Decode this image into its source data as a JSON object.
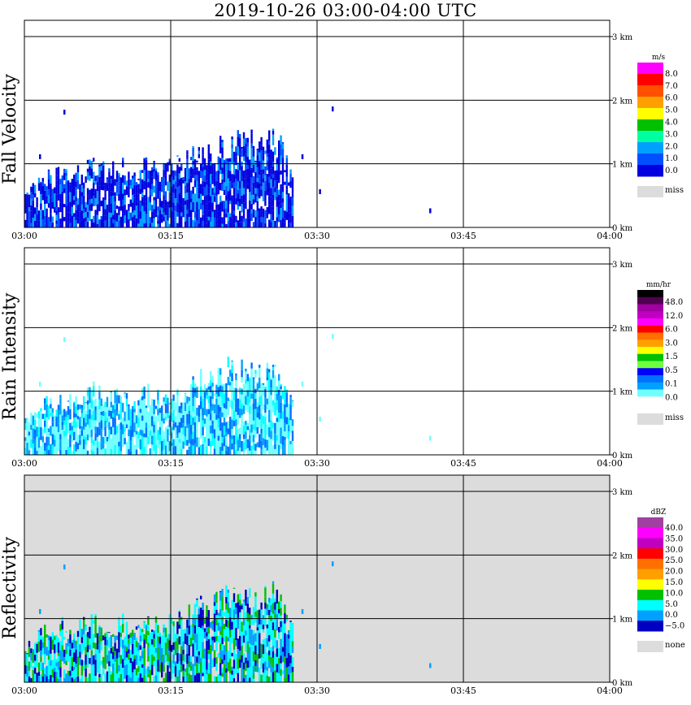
{
  "title": "2019-10-26   03:00-04:00 UTC",
  "chart_data": [
    {
      "type": "heatmap",
      "ylabel": "Fall Velocity",
      "xlim": [
        "03:00",
        "04:00"
      ],
      "ylim_km": [
        0,
        3.2
      ],
      "xticks": [
        "03:00",
        "03:15",
        "03:30",
        "03:45",
        "04:00"
      ],
      "yticks": [
        "0 km",
        "1 km",
        "2 km",
        "3 km"
      ],
      "background": "#ffffff",
      "colorbar": {
        "unit": "m/s",
        "colors": [
          "#ff00ff",
          "#ff0000",
          "#ff5000",
          "#ffa000",
          "#ffff00",
          "#00c000",
          "#00ffa0",
          "#00a0ff",
          "#0050ff",
          "#0000e0"
        ],
        "labels": [
          "8.0",
          "7.0",
          "6.0",
          "5.0",
          "4.0",
          "3.0",
          "2.0",
          "1.0",
          "0.0"
        ],
        "miss_label": "miss"
      },
      "echo_profile": {
        "minutes": [
          0,
          1,
          2,
          3,
          4,
          5,
          6,
          7,
          8,
          9,
          10,
          11,
          12,
          13,
          14,
          15,
          16,
          17,
          18,
          19,
          20,
          21,
          22,
          23,
          24,
          25,
          26,
          27,
          28,
          29,
          30,
          31,
          35,
          40,
          45,
          50,
          55,
          60
        ],
        "top_km": [
          0.6,
          0.75,
          0.9,
          0.9,
          1.0,
          0.9,
          1.0,
          1.1,
          1.0,
          1.0,
          1.05,
          0.9,
          1.05,
          1.1,
          1.0,
          1.05,
          1.1,
          1.25,
          1.3,
          1.3,
          1.4,
          1.5,
          1.45,
          1.5,
          1.4,
          1.6,
          1.5,
          1.0,
          1.2,
          0,
          0,
          0,
          0,
          0,
          0,
          0,
          0,
          0
        ]
      },
      "echo_palette": [
        "#0000e0",
        "#0050ff",
        "#0000e0",
        "#0000e0",
        "#00a0ff"
      ]
    },
    {
      "type": "heatmap",
      "ylabel": "Rain Intensity",
      "xlim": [
        "03:00",
        "04:00"
      ],
      "ylim_km": [
        0,
        3.2
      ],
      "xticks": [
        "03:00",
        "03:15",
        "03:30",
        "03:45",
        "04:00"
      ],
      "yticks": [
        "0 km",
        "1 km",
        "2 km",
        "3 km"
      ],
      "background": "#ffffff",
      "colorbar": {
        "unit": "mm/hr",
        "colors": [
          "#000000",
          "#500050",
          "#a000a0",
          "#c000c0",
          "#ff00ff",
          "#ff0000",
          "#ff7000",
          "#ffa000",
          "#ffff00",
          "#00c000",
          "#70ff40",
          "#0000ff",
          "#0070ff",
          "#00a0ff",
          "#70ffff",
          "#ffffff"
        ],
        "labels": [
          "48.0",
          "12.0",
          "6.0",
          "3.0",
          "1.5",
          "0.5",
          "0.1",
          "0.0"
        ],
        "miss_label": "miss"
      },
      "echo_profile": {
        "minutes": [
          0,
          1,
          2,
          3,
          4,
          5,
          6,
          7,
          8,
          9,
          10,
          11,
          12,
          13,
          14,
          15,
          16,
          17,
          18,
          19,
          20,
          21,
          22,
          23,
          24,
          25,
          26,
          27,
          28,
          29,
          30,
          31,
          35,
          40,
          45,
          50,
          55,
          60
        ],
        "top_km": [
          0.6,
          0.75,
          0.9,
          0.9,
          1.0,
          0.9,
          1.0,
          1.1,
          1.0,
          1.0,
          1.05,
          0.9,
          1.05,
          1.1,
          1.0,
          1.05,
          1.1,
          1.25,
          1.3,
          1.3,
          1.4,
          1.5,
          1.45,
          1.5,
          1.4,
          1.6,
          1.5,
          1.0,
          1.2,
          0,
          0,
          0,
          0,
          0,
          0,
          0,
          0,
          0
        ]
      },
      "echo_palette": [
        "#70ffff",
        "#00ffff",
        "#00a0ff",
        "#70ffff",
        "#0070ff"
      ]
    },
    {
      "type": "heatmap",
      "ylabel": "Reflectivity",
      "xlim": [
        "03:00",
        "04:00"
      ],
      "ylim_km": [
        0,
        3.2
      ],
      "xticks": [
        "03:00",
        "03:15",
        "03:30",
        "03:45",
        "04:00"
      ],
      "yticks": [
        "0 km",
        "1 km",
        "2 km",
        "3 km"
      ],
      "background": "#dcdcdc",
      "colorbar": {
        "unit": "dBZ",
        "colors": [
          "#a040a0",
          "#ff00ff",
          "#c000c0",
          "#ff0000",
          "#ff7000",
          "#ffa000",
          "#ffff00",
          "#00c000",
          "#00ffff",
          "#00a0ff",
          "#0000c0"
        ],
        "labels": [
          "40.0",
          "35.0",
          "30.0",
          "25.0",
          "20.0",
          "15.0",
          "10.0",
          "5.0",
          "0.0",
          "−5.0"
        ],
        "miss_label": "none"
      },
      "echo_profile": {
        "minutes": [
          0,
          1,
          2,
          3,
          4,
          5,
          6,
          7,
          8,
          9,
          10,
          11,
          12,
          13,
          14,
          15,
          16,
          17,
          18,
          19,
          20,
          21,
          22,
          23,
          24,
          25,
          26,
          27,
          28,
          29,
          30,
          31,
          35,
          40,
          45,
          50,
          55,
          60
        ],
        "top_km": [
          0.6,
          0.75,
          0.9,
          0.9,
          1.0,
          0.9,
          1.0,
          1.1,
          1.0,
          1.0,
          1.05,
          0.9,
          1.05,
          1.1,
          1.0,
          1.05,
          1.1,
          1.25,
          1.3,
          1.3,
          1.4,
          1.5,
          1.45,
          1.5,
          1.4,
          1.6,
          1.5,
          1.0,
          1.2,
          0,
          0,
          0,
          0,
          0,
          0,
          0,
          0,
          0
        ]
      },
      "echo_palette": [
        "#00a0ff",
        "#00ffff",
        "#0000c0",
        "#00ffff",
        "#00c000"
      ]
    }
  ]
}
